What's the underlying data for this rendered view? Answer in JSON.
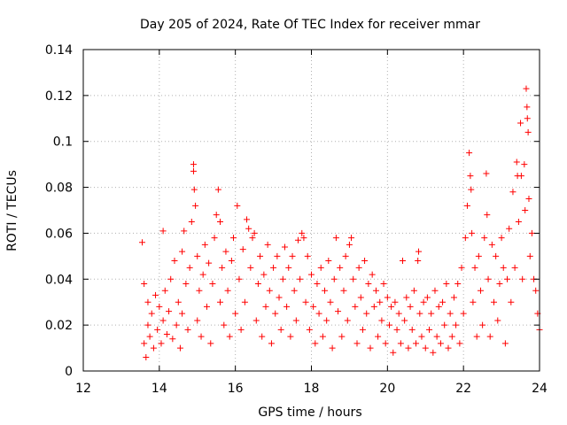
{
  "chart_data": {
    "type": "scatter",
    "title": "Day 205 of 2024, Rate Of TEC Index for receiver mmar",
    "xlabel": "GPS time / hours",
    "ylabel": "ROTI / TECUs",
    "xlim": [
      12,
      24
    ],
    "ylim": [
      0,
      0.14
    ],
    "xticks": [
      12,
      14,
      16,
      18,
      20,
      22,
      24
    ],
    "xtick_labels": [
      "12",
      "14",
      "16",
      "18",
      "20",
      "22",
      "24"
    ],
    "yticks": [
      0,
      0.02,
      0.04,
      0.06,
      0.08,
      0.1,
      0.12,
      0.14
    ],
    "ytick_labels": [
      "0",
      "0.02",
      "0.04",
      "0.06",
      "0.08",
      "0.1",
      "0.12",
      "0.14"
    ],
    "grid": true,
    "marker": "plus",
    "color": "#ff0000",
    "series": [
      {
        "name": "ROTI",
        "points": [
          [
            13.55,
            0.056
          ],
          [
            13.6,
            0.038
          ],
          [
            13.6,
            0.012
          ],
          [
            13.65,
            0.006
          ],
          [
            13.7,
            0.02
          ],
          [
            13.7,
            0.03
          ],
          [
            13.75,
            0.015
          ],
          [
            13.8,
            0.025
          ],
          [
            13.85,
            0.01
          ],
          [
            13.9,
            0.033
          ],
          [
            13.95,
            0.018
          ],
          [
            14.0,
            0.028
          ],
          [
            14.05,
            0.012
          ],
          [
            14.1,
            0.022
          ],
          [
            14.1,
            0.061
          ],
          [
            14.15,
            0.035
          ],
          [
            14.2,
            0.016
          ],
          [
            14.25,
            0.026
          ],
          [
            14.3,
            0.04
          ],
          [
            14.35,
            0.014
          ],
          [
            14.4,
            0.048
          ],
          [
            14.45,
            0.02
          ],
          [
            14.5,
            0.03
          ],
          [
            14.55,
            0.01
          ],
          [
            14.6,
            0.052
          ],
          [
            14.6,
            0.025
          ],
          [
            14.65,
            0.061
          ],
          [
            14.7,
            0.038
          ],
          [
            14.75,
            0.018
          ],
          [
            14.8,
            0.045
          ],
          [
            14.85,
            0.065
          ],
          [
            14.9,
            0.09
          ],
          [
            14.9,
            0.087
          ],
          [
            14.92,
            0.079
          ],
          [
            14.95,
            0.072
          ],
          [
            15.0,
            0.05
          ],
          [
            15.0,
            0.022
          ],
          [
            15.05,
            0.035
          ],
          [
            15.1,
            0.015
          ],
          [
            15.15,
            0.042
          ],
          [
            15.2,
            0.055
          ],
          [
            15.25,
            0.028
          ],
          [
            15.3,
            0.047
          ],
          [
            15.35,
            0.012
          ],
          [
            15.4,
            0.038
          ],
          [
            15.45,
            0.058
          ],
          [
            15.5,
            0.068
          ],
          [
            15.55,
            0.079
          ],
          [
            15.6,
            0.065
          ],
          [
            15.6,
            0.03
          ],
          [
            15.65,
            0.045
          ],
          [
            15.7,
            0.02
          ],
          [
            15.75,
            0.052
          ],
          [
            15.8,
            0.035
          ],
          [
            15.85,
            0.015
          ],
          [
            15.9,
            0.048
          ],
          [
            15.95,
            0.058
          ],
          [
            16.0,
            0.025
          ],
          [
            16.05,
            0.072
          ],
          [
            16.1,
            0.04
          ],
          [
            16.15,
            0.018
          ],
          [
            16.2,
            0.053
          ],
          [
            16.25,
            0.03
          ],
          [
            16.3,
            0.066
          ],
          [
            16.35,
            0.062
          ],
          [
            16.4,
            0.045
          ],
          [
            16.45,
            0.058
          ],
          [
            16.5,
            0.06
          ],
          [
            16.55,
            0.022
          ],
          [
            16.6,
            0.038
          ],
          [
            16.65,
            0.05
          ],
          [
            16.7,
            0.015
          ],
          [
            16.75,
            0.042
          ],
          [
            16.8,
            0.028
          ],
          [
            16.85,
            0.055
          ],
          [
            16.9,
            0.035
          ],
          [
            16.95,
            0.012
          ],
          [
            17.0,
            0.045
          ],
          [
            17.05,
            0.025
          ],
          [
            17.1,
            0.05
          ],
          [
            17.15,
            0.032
          ],
          [
            17.2,
            0.018
          ],
          [
            17.25,
            0.04
          ],
          [
            17.3,
            0.054
          ],
          [
            17.35,
            0.028
          ],
          [
            17.4,
            0.045
          ],
          [
            17.45,
            0.015
          ],
          [
            17.5,
            0.05
          ],
          [
            17.55,
            0.035
          ],
          [
            17.6,
            0.022
          ],
          [
            17.65,
            0.057
          ],
          [
            17.7,
            0.04
          ],
          [
            17.75,
            0.06
          ],
          [
            17.8,
            0.058
          ],
          [
            17.85,
            0.03
          ],
          [
            17.9,
            0.05
          ],
          [
            17.95,
            0.018
          ],
          [
            18.0,
            0.042
          ],
          [
            18.05,
            0.028
          ],
          [
            18.1,
            0.012
          ],
          [
            18.15,
            0.038
          ],
          [
            18.2,
            0.025
          ],
          [
            18.25,
            0.045
          ],
          [
            18.3,
            0.015
          ],
          [
            18.35,
            0.035
          ],
          [
            18.4,
            0.022
          ],
          [
            18.45,
            0.048
          ],
          [
            18.5,
            0.03
          ],
          [
            18.55,
            0.01
          ],
          [
            18.6,
            0.04
          ],
          [
            18.65,
            0.058
          ],
          [
            18.7,
            0.026
          ],
          [
            18.75,
            0.045
          ],
          [
            18.8,
            0.015
          ],
          [
            18.85,
            0.035
          ],
          [
            18.9,
            0.05
          ],
          [
            18.95,
            0.022
          ],
          [
            19.0,
            0.055
          ],
          [
            19.05,
            0.058
          ],
          [
            19.1,
            0.04
          ],
          [
            19.15,
            0.028
          ],
          [
            19.2,
            0.012
          ],
          [
            19.25,
            0.045
          ],
          [
            19.3,
            0.032
          ],
          [
            19.35,
            0.018
          ],
          [
            19.4,
            0.048
          ],
          [
            19.45,
            0.025
          ],
          [
            19.5,
            0.038
          ],
          [
            19.55,
            0.01
          ],
          [
            19.6,
            0.042
          ],
          [
            19.65,
            0.028
          ],
          [
            19.7,
            0.035
          ],
          [
            19.75,
            0.015
          ],
          [
            19.8,
            0.03
          ],
          [
            19.85,
            0.022
          ],
          [
            19.9,
            0.038
          ],
          [
            19.95,
            0.012
          ],
          [
            20.0,
            0.032
          ],
          [
            20.05,
            0.02
          ],
          [
            20.1,
            0.028
          ],
          [
            20.15,
            0.008
          ],
          [
            20.2,
            0.03
          ],
          [
            20.25,
            0.018
          ],
          [
            20.3,
            0.025
          ],
          [
            20.35,
            0.012
          ],
          [
            20.4,
            0.048
          ],
          [
            20.45,
            0.022
          ],
          [
            20.5,
            0.032
          ],
          [
            20.55,
            0.01
          ],
          [
            20.6,
            0.028
          ],
          [
            20.65,
            0.018
          ],
          [
            20.7,
            0.035
          ],
          [
            20.75,
            0.012
          ],
          [
            20.8,
            0.048
          ],
          [
            20.82,
            0.052
          ],
          [
            20.85,
            0.025
          ],
          [
            20.9,
            0.015
          ],
          [
            20.95,
            0.03
          ],
          [
            21.0,
            0.01
          ],
          [
            21.05,
            0.032
          ],
          [
            21.1,
            0.018
          ],
          [
            21.15,
            0.025
          ],
          [
            21.2,
            0.008
          ],
          [
            21.25,
            0.035
          ],
          [
            21.3,
            0.015
          ],
          [
            21.35,
            0.028
          ],
          [
            21.4,
            0.012
          ],
          [
            21.45,
            0.03
          ],
          [
            21.5,
            0.02
          ],
          [
            21.55,
            0.038
          ],
          [
            21.6,
            0.01
          ],
          [
            21.65,
            0.025
          ],
          [
            21.7,
            0.015
          ],
          [
            21.75,
            0.032
          ],
          [
            21.8,
            0.02
          ],
          [
            21.85,
            0.038
          ],
          [
            21.9,
            0.012
          ],
          [
            21.95,
            0.045
          ],
          [
            22.0,
            0.025
          ],
          [
            22.05,
            0.058
          ],
          [
            22.1,
            0.072
          ],
          [
            22.15,
            0.095
          ],
          [
            22.18,
            0.085
          ],
          [
            22.2,
            0.079
          ],
          [
            22.22,
            0.06
          ],
          [
            22.25,
            0.03
          ],
          [
            22.3,
            0.045
          ],
          [
            22.35,
            0.015
          ],
          [
            22.4,
            0.05
          ],
          [
            22.45,
            0.035
          ],
          [
            22.5,
            0.02
          ],
          [
            22.55,
            0.058
          ],
          [
            22.6,
            0.086
          ],
          [
            22.62,
            0.068
          ],
          [
            22.65,
            0.04
          ],
          [
            22.7,
            0.015
          ],
          [
            22.75,
            0.055
          ],
          [
            22.8,
            0.03
          ],
          [
            22.85,
            0.05
          ],
          [
            22.9,
            0.022
          ],
          [
            22.95,
            0.038
          ],
          [
            23.0,
            0.058
          ],
          [
            23.05,
            0.045
          ],
          [
            23.1,
            0.012
          ],
          [
            23.15,
            0.04
          ],
          [
            23.2,
            0.062
          ],
          [
            23.25,
            0.03
          ],
          [
            23.3,
            0.078
          ],
          [
            23.35,
            0.045
          ],
          [
            23.4,
            0.091
          ],
          [
            23.42,
            0.085
          ],
          [
            23.45,
            0.065
          ],
          [
            23.5,
            0.108
          ],
          [
            23.52,
            0.085
          ],
          [
            23.55,
            0.04
          ],
          [
            23.6,
            0.09
          ],
          [
            23.62,
            0.07
          ],
          [
            23.65,
            0.123
          ],
          [
            23.67,
            0.115
          ],
          [
            23.68,
            0.11
          ],
          [
            23.7,
            0.104
          ],
          [
            23.72,
            0.075
          ],
          [
            23.75,
            0.05
          ],
          [
            23.8,
            0.06
          ],
          [
            23.85,
            0.04
          ],
          [
            23.9,
            0.035
          ],
          [
            23.95,
            0.025
          ],
          [
            24.0,
            0.018
          ]
        ]
      }
    ]
  }
}
